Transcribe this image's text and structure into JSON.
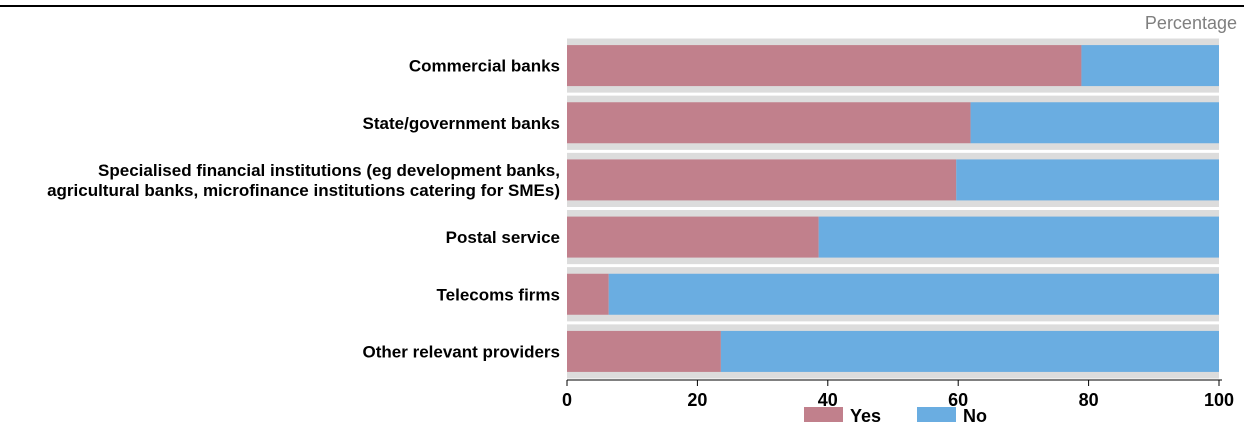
{
  "chart_data": {
    "type": "bar",
    "orientation": "horizontal",
    "stacked": true,
    "unit_label": "Percentage",
    "categories": [
      [
        "Commercial banks"
      ],
      [
        "State/government banks"
      ],
      [
        "Specialised financial institutions (eg development banks,",
        "agricultural banks, microfinance institutions catering for SMEs)"
      ],
      [
        "Postal service"
      ],
      [
        "Telecoms firms"
      ],
      [
        "Other relevant providers"
      ]
    ],
    "series": [
      {
        "name": "Yes",
        "color": "#C1808C",
        "values": [
          78.9,
          61.9,
          59.7,
          38.6,
          6.4,
          23.6
        ]
      },
      {
        "name": "No",
        "color": "#6AADE1",
        "values": [
          21.1,
          38.1,
          40.3,
          61.4,
          93.6,
          76.4
        ]
      }
    ],
    "xlim": [
      0,
      100
    ],
    "xticks": [
      0,
      20,
      40,
      60,
      80,
      100
    ],
    "xtick_labels": [
      "0",
      "20",
      "40",
      "60",
      "80",
      "100"
    ],
    "grid": true,
    "legend": "bottom-center",
    "colors": {
      "background_band": "#DCDCDC",
      "top_rule": "#000000",
      "unit_label": "#7F7F7F",
      "axis_text": "#000000"
    }
  }
}
